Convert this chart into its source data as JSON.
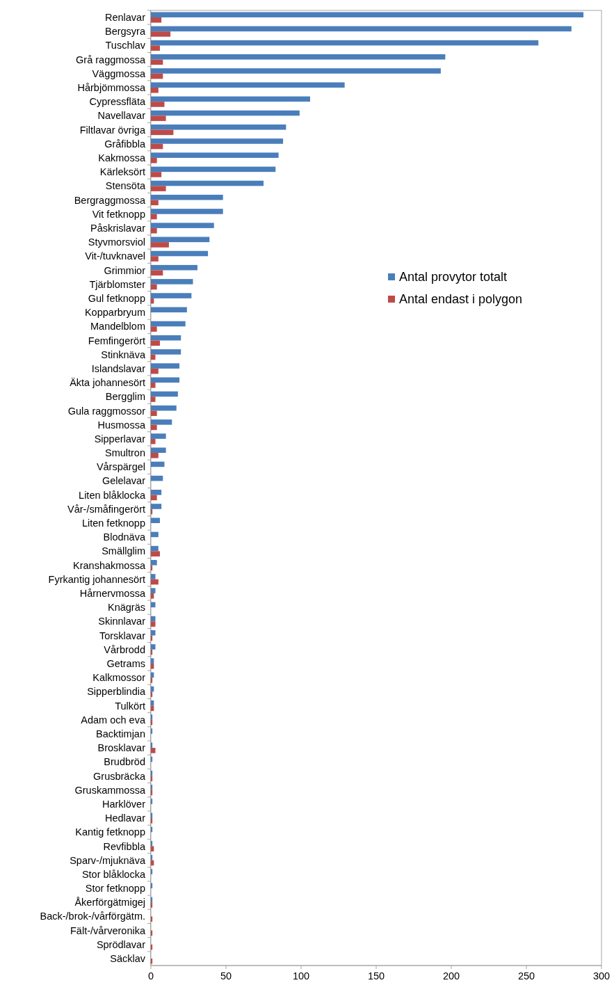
{
  "chart_data": {
    "type": "bar",
    "orientation": "horizontal",
    "legend": "right",
    "grid": false,
    "categories": [
      "Renlavar",
      "Bergsyra",
      "Tuschlav",
      "Grå raggmossa",
      "Väggmossa",
      "Hårbjömmossa",
      "Cypressfläta",
      "Navellavar",
      "Filtlavar övriga",
      "Gråfibbla",
      "Kakmossa",
      "Kärleksört",
      "Stensöta",
      "Bergraggmossa",
      "Vit fetknopp",
      "Påskrislavar",
      "Styvmorsviol",
      "Vit-/tuvknavel",
      "Grimmior",
      "Tjärblomster",
      "Gul fetknopp",
      "Kopparbryum",
      "Mandelblom",
      "Femfingerört",
      "Stinknäva",
      "Islandslavar",
      "Äkta johannesört",
      "Bergglim",
      "Gula raggmossor",
      "Husmossa",
      "Sipperlavar",
      "Smultron",
      "Vårspärgel",
      "Gelelavar",
      "Liten blåklocka",
      "Vår-/småfingerört",
      "Liten fetknopp",
      "Blodnäva",
      "Smällglim",
      "Kranshakmossa",
      "Fyrkantig johannesört",
      "Hårnervmossa",
      "Knägräs",
      "Skinnlavar",
      "Torsklavar",
      "Vårbrodd",
      "Getrams",
      "Kalkmossor",
      "Sipperblindia",
      "Tulkört",
      "Adam och eva",
      "Backtimjan",
      "Brosklavar",
      "Brudbröd",
      "Grusbräcka",
      "Gruskammossa",
      "Harklöver",
      "Hedlavar",
      "Kantig fetknopp",
      "Revfibbla",
      "Sparv-/mjuknäva",
      "Stor blåklocka",
      "Stor fetknopp",
      "Åkerförgätmigej",
      "Back-/brok-/vårförgätm.",
      "Fält-/vårveronika",
      "Sprödlavar",
      "Säcklav"
    ],
    "series": [
      {
        "name": "Antal provytor totalt",
        "color": "#4a7ebb",
        "values": [
          288,
          280,
          258,
          196,
          193,
          129,
          106,
          99,
          90,
          88,
          85,
          83,
          75,
          48,
          48,
          42,
          39,
          38,
          31,
          28,
          27,
          24,
          23,
          20,
          20,
          19,
          19,
          18,
          17,
          14,
          10,
          10,
          9,
          8,
          7,
          7,
          6,
          5,
          5,
          4,
          3,
          3,
          3,
          3,
          3,
          3,
          2,
          2,
          2,
          2,
          1,
          1,
          1,
          1,
          1,
          1,
          1,
          1,
          1,
          1,
          1,
          1,
          1,
          1,
          0,
          0,
          0,
          0
        ]
      },
      {
        "name": "Antal endast i polygon",
        "color": "#be4b48",
        "values": [
          7,
          13,
          6,
          8,
          8,
          5,
          9,
          10,
          15,
          8,
          4,
          7,
          10,
          5,
          4,
          4,
          12,
          5,
          8,
          4,
          2,
          0,
          4,
          6,
          3,
          5,
          3,
          3,
          4,
          4,
          3,
          5,
          0,
          0,
          4,
          1,
          0,
          0,
          6,
          1,
          5,
          2,
          0,
          3,
          1,
          1,
          2,
          1,
          1,
          2,
          1,
          0,
          3,
          0,
          1,
          1,
          0,
          1,
          0,
          2,
          2,
          0,
          0,
          1,
          1,
          1,
          1,
          1
        ]
      }
    ],
    "xlim": [
      0,
      300
    ],
    "xticks": [
      0,
      50,
      100,
      150,
      200,
      250,
      300
    ]
  }
}
